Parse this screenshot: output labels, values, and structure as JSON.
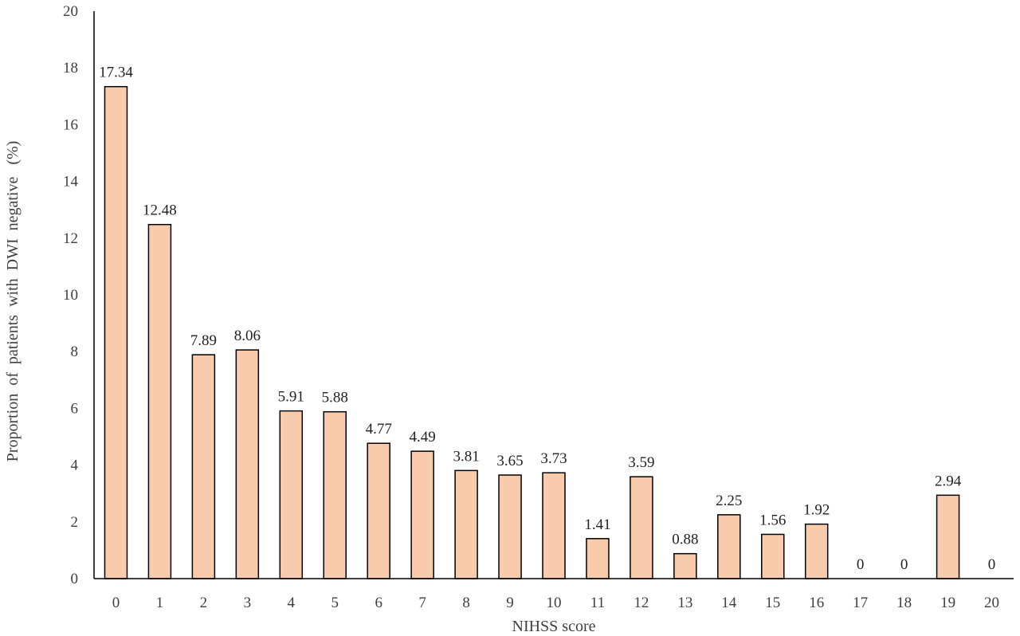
{
  "chart_data": {
    "type": "bar",
    "xlabel": "NIHSS score",
    "ylabel": "Proportion  of  patients  with  DWI  negative   (%)",
    "categories": [
      "0",
      "1",
      "2",
      "3",
      "4",
      "5",
      "6",
      "7",
      "8",
      "9",
      "10",
      "11",
      "12",
      "13",
      "14",
      "15",
      "16",
      "17",
      "18",
      "19",
      "20"
    ],
    "values": [
      17.34,
      12.48,
      7.89,
      8.06,
      5.91,
      5.88,
      4.77,
      4.49,
      3.81,
      3.65,
      3.73,
      1.41,
      3.59,
      0.88,
      2.25,
      1.56,
      1.92,
      0,
      0,
      2.94,
      0
    ],
    "data_labels": [
      "17.34",
      "12.48",
      "7.89",
      "8.06",
      "5.91",
      "5.88",
      "4.77",
      "4.49",
      "3.81",
      "3.65",
      "3.73",
      "1.41",
      "3.59",
      "0.88",
      "2.25",
      "1.56",
      "1.92",
      "0",
      "0",
      "2.94",
      "0"
    ],
    "ylim": [
      0,
      20
    ],
    "yticks": [
      "0",
      "2",
      "4",
      "6",
      "8",
      "10",
      "12",
      "14",
      "16",
      "18",
      "20"
    ],
    "grid": false,
    "legend": "none",
    "bar_color": "#f8cbad",
    "bar_edge_color": "#000000",
    "axis_color": "#000000"
  }
}
